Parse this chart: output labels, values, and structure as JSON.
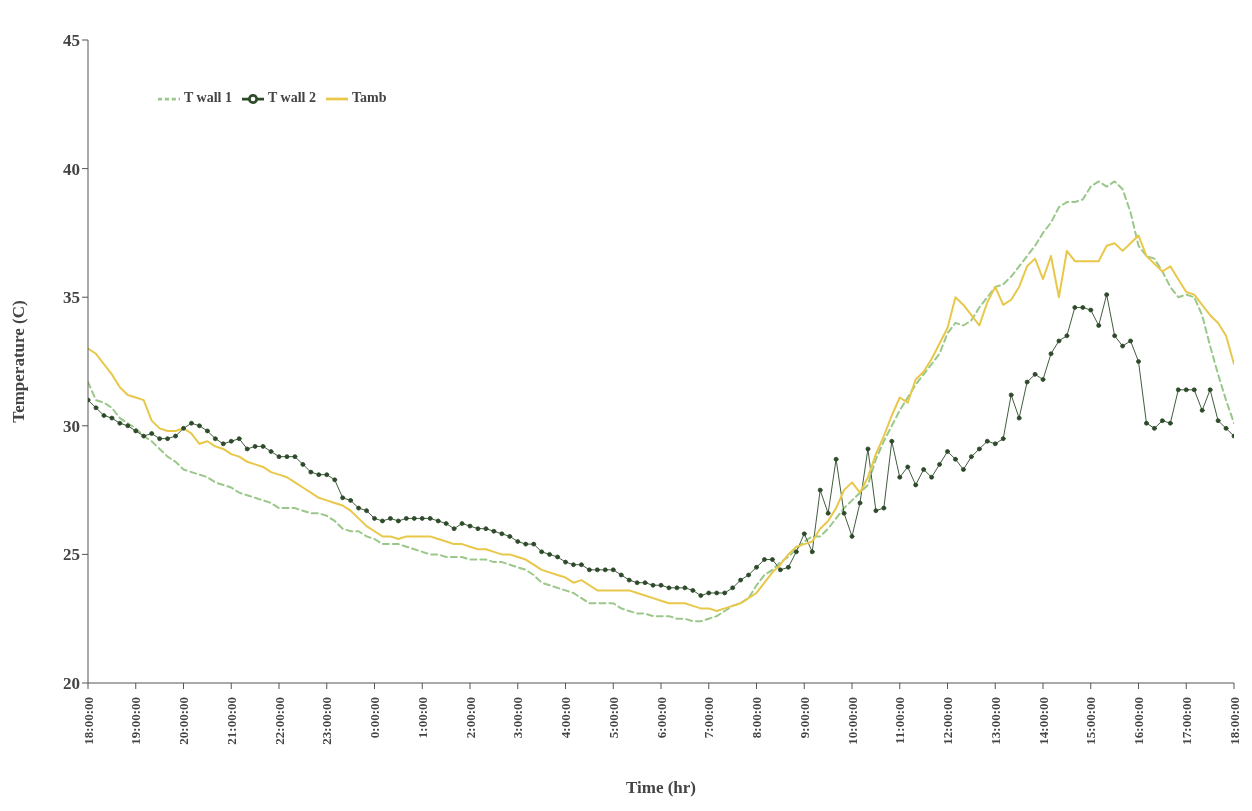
{
  "chart_data": {
    "type": "line",
    "xlabel": "Time (hr)",
    "ylabel": "Temperature (C)",
    "ylim": [
      20,
      45
    ],
    "yticks": [
      20,
      25,
      30,
      35,
      40,
      45
    ],
    "categories": [
      "18:00:00",
      null,
      null,
      null,
      null,
      null,
      "19:00:00",
      null,
      null,
      null,
      null,
      null,
      "20:00:00",
      null,
      null,
      null,
      null,
      null,
      "21:00:00",
      null,
      null,
      null,
      null,
      null,
      "22:00:00",
      null,
      null,
      null,
      null,
      null,
      "23:00:00",
      null,
      null,
      null,
      null,
      null,
      "0:00:00",
      null,
      null,
      null,
      null,
      null,
      "1:00:00",
      null,
      null,
      null,
      null,
      null,
      "2:00:00",
      null,
      null,
      null,
      null,
      null,
      "3:00:00",
      null,
      null,
      null,
      null,
      null,
      "4:00:00",
      null,
      null,
      null,
      null,
      null,
      "5:00:00",
      null,
      null,
      null,
      null,
      null,
      "6:00:00",
      null,
      null,
      null,
      null,
      null,
      "7:00:00",
      null,
      null,
      null,
      null,
      null,
      "8:00:00",
      null,
      null,
      null,
      null,
      null,
      "9:00:00",
      null,
      null,
      null,
      null,
      null,
      "10:00:00",
      null,
      null,
      null,
      null,
      null,
      "11:00:00",
      null,
      null,
      null,
      null,
      null,
      "12:00:00",
      null,
      null,
      null,
      null,
      null,
      "13:00:00",
      null,
      null,
      null,
      null,
      null,
      "14:00:00",
      null,
      null,
      null,
      null,
      null,
      "15:00:00",
      null,
      null,
      null,
      null,
      null,
      "16:00:00",
      null,
      null,
      null,
      null,
      null,
      "17:00:00",
      null,
      null,
      null,
      null,
      null,
      "18:00:00"
    ],
    "grid": false,
    "legend": "top left",
    "series": [
      {
        "name": "T wall 1",
        "color": "#9bc88a",
        "line_style": "dashed",
        "marker": "none",
        "values": [
          31.7,
          31.0,
          30.9,
          30.7,
          30.3,
          30.1,
          29.9,
          29.6,
          29.4,
          29.1,
          28.8,
          28.6,
          28.3,
          28.2,
          28.1,
          28.0,
          27.8,
          27.7,
          27.6,
          27.4,
          27.3,
          27.2,
          27.1,
          27.0,
          26.8,
          26.8,
          26.8,
          26.7,
          26.6,
          26.6,
          26.5,
          26.3,
          26.0,
          25.9,
          25.9,
          25.7,
          25.6,
          25.4,
          25.4,
          25.4,
          25.3,
          25.2,
          25.1,
          25.0,
          25.0,
          24.9,
          24.9,
          24.9,
          24.8,
          24.8,
          24.8,
          24.7,
          24.7,
          24.6,
          24.5,
          24.4,
          24.2,
          23.9,
          23.8,
          23.7,
          23.6,
          23.5,
          23.3,
          23.1,
          23.1,
          23.1,
          23.1,
          22.9,
          22.8,
          22.7,
          22.7,
          22.6,
          22.6,
          22.6,
          22.5,
          22.5,
          22.4,
          22.4,
          22.5,
          22.6,
          22.8,
          23.0,
          23.1,
          23.3,
          23.8,
          24.2,
          24.4,
          24.7,
          24.9,
          25.2,
          25.5,
          25.7,
          25.7,
          26.0,
          26.4,
          26.8,
          27.1,
          27.4,
          27.7,
          28.7,
          29.4,
          30.0,
          30.6,
          31.1,
          31.6,
          32.0,
          32.4,
          32.8,
          33.6,
          34.0,
          33.9,
          34.1,
          34.6,
          35.0,
          35.4,
          35.5,
          35.8,
          36.2,
          36.6,
          37.0,
          37.5,
          37.9,
          38.5,
          38.7,
          38.7,
          38.8,
          39.3,
          39.5,
          39.3,
          39.5,
          39.2,
          38.3,
          37.0,
          36.6,
          36.5,
          36.0,
          35.4,
          35.0,
          35.1,
          35.0,
          34.3,
          33.1,
          32.0,
          31.0,
          30.1
        ]
      },
      {
        "name": "T wall 2",
        "color": "#2d4a2a",
        "line_style": "solid",
        "marker": "circle",
        "values": [
          31.0,
          30.7,
          30.4,
          30.3,
          30.1,
          30.0,
          29.8,
          29.6,
          29.7,
          29.5,
          29.5,
          29.6,
          29.9,
          30.1,
          30.0,
          29.8,
          29.5,
          29.3,
          29.4,
          29.5,
          29.1,
          29.2,
          29.2,
          29.0,
          28.8,
          28.8,
          28.8,
          28.5,
          28.2,
          28.1,
          28.1,
          27.9,
          27.2,
          27.1,
          26.8,
          26.7,
          26.4,
          26.3,
          26.4,
          26.3,
          26.4,
          26.4,
          26.4,
          26.4,
          26.3,
          26.2,
          26.0,
          26.2,
          26.1,
          26.0,
          26.0,
          25.9,
          25.8,
          25.7,
          25.5,
          25.4,
          25.4,
          25.1,
          25.0,
          24.9,
          24.7,
          24.6,
          24.6,
          24.4,
          24.4,
          24.4,
          24.4,
          24.2,
          24.0,
          23.9,
          23.9,
          23.8,
          23.8,
          23.7,
          23.7,
          23.7,
          23.6,
          23.4,
          23.5,
          23.5,
          23.5,
          23.7,
          24.0,
          24.2,
          24.5,
          24.8,
          24.8,
          24.4,
          24.5,
          25.1,
          25.8,
          25.1,
          27.5,
          26.6,
          28.7,
          26.6,
          25.7,
          27.0,
          29.1,
          26.7,
          26.8,
          29.4,
          28.0,
          28.4,
          27.7,
          28.3,
          28.0,
          28.5,
          29.0,
          28.7,
          28.3,
          28.8,
          29.1,
          29.4,
          29.3,
          29.5,
          31.2,
          30.3,
          31.7,
          32.0,
          31.8,
          32.8,
          33.3,
          33.5,
          34.6,
          34.6,
          34.5,
          33.9,
          35.1,
          33.5,
          33.1,
          33.3,
          32.5,
          30.1,
          29.9,
          30.2,
          30.1,
          31.4,
          31.4,
          31.4,
          30.6,
          31.4,
          30.2,
          29.9,
          29.6
        ]
      },
      {
        "name": "Tamb",
        "color": "#e8c84a",
        "line_style": "solid",
        "marker": "none",
        "values": [
          33.0,
          32.8,
          32.4,
          32.0,
          31.5,
          31.2,
          31.1,
          31.0,
          30.2,
          29.9,
          29.8,
          29.8,
          29.9,
          29.7,
          29.3,
          29.4,
          29.2,
          29.1,
          28.9,
          28.8,
          28.6,
          28.5,
          28.4,
          28.2,
          28.1,
          28.0,
          27.8,
          27.6,
          27.4,
          27.2,
          27.1,
          27.0,
          26.9,
          26.7,
          26.4,
          26.1,
          25.9,
          25.7,
          25.7,
          25.6,
          25.7,
          25.7,
          25.7,
          25.7,
          25.6,
          25.5,
          25.4,
          25.4,
          25.3,
          25.2,
          25.2,
          25.1,
          25.0,
          25.0,
          24.9,
          24.8,
          24.6,
          24.4,
          24.3,
          24.2,
          24.1,
          23.9,
          24.0,
          23.8,
          23.6,
          23.6,
          23.6,
          23.6,
          23.6,
          23.5,
          23.4,
          23.3,
          23.2,
          23.1,
          23.1,
          23.1,
          23.0,
          22.9,
          22.9,
          22.8,
          22.9,
          23.0,
          23.1,
          23.3,
          23.5,
          23.9,
          24.3,
          24.6,
          25.0,
          25.3,
          25.4,
          25.5,
          26.0,
          26.3,
          26.8,
          27.5,
          27.8,
          27.4,
          28.0,
          28.9,
          29.6,
          30.4,
          31.1,
          30.9,
          31.8,
          32.1,
          32.6,
          33.2,
          33.8,
          35.0,
          34.7,
          34.3,
          33.9,
          34.8,
          35.4,
          34.7,
          34.9,
          35.4,
          36.2,
          36.5,
          35.7,
          36.6,
          35.0,
          36.8,
          36.4,
          36.4,
          36.4,
          36.4,
          37.0,
          37.1,
          36.8,
          37.1,
          37.4,
          36.6,
          36.3,
          36.0,
          36.2,
          35.7,
          35.2,
          35.1,
          34.7,
          34.3,
          34.0,
          33.5,
          32.4
        ]
      }
    ]
  }
}
